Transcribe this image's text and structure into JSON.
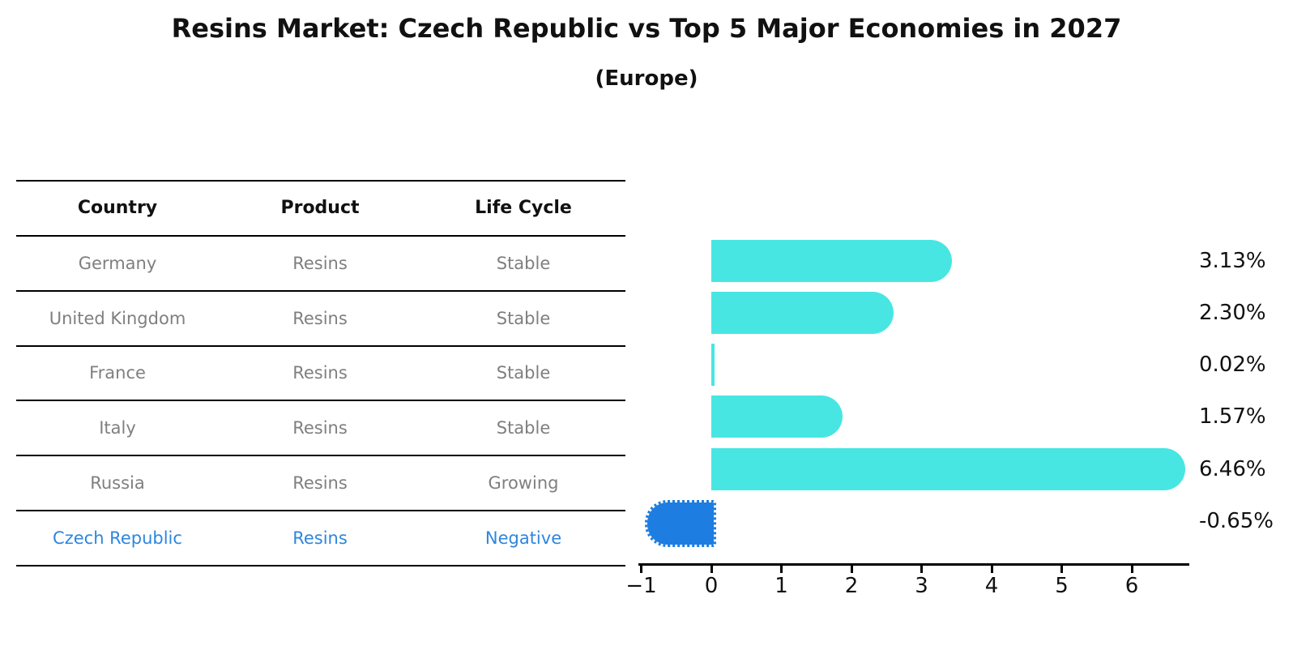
{
  "title": "Resins Market: Czech Republic vs Top 5 Major Economies in 2027",
  "subtitle": "(Europe)",
  "table": {
    "headers": [
      "Country",
      "Product",
      "Life Cycle"
    ],
    "rows": [
      {
        "country": "Germany",
        "product": "Resins",
        "life_cycle": "Stable",
        "highlight": false
      },
      {
        "country": "United Kingdom",
        "product": "Resins",
        "life_cycle": "Stable",
        "highlight": false
      },
      {
        "country": "France",
        "product": "Resins",
        "life_cycle": "Stable",
        "highlight": false
      },
      {
        "country": "Italy",
        "product": "Resins",
        "life_cycle": "Stable",
        "highlight": false
      },
      {
        "country": "Russia",
        "product": "Resins",
        "life_cycle": "Growing",
        "highlight": false
      },
      {
        "country": "Czech Republic",
        "product": "Resins",
        "life_cycle": "Negative",
        "highlight": true
      }
    ]
  },
  "chart_data": {
    "type": "bar",
    "orientation": "horizontal",
    "title": "Resins Market: Czech Republic vs Top 5 Major Economies in 2027",
    "subtitle": "(Europe)",
    "categories": [
      "Germany",
      "United Kingdom",
      "France",
      "Italy",
      "Russia",
      "Czech Republic"
    ],
    "values": [
      3.13,
      2.3,
      0.02,
      1.57,
      6.46,
      -0.65
    ],
    "value_labels": [
      "3.13%",
      "2.30%",
      "0.02%",
      "1.57%",
      "6.46%",
      "-0.65%"
    ],
    "xlabel": "",
    "ylabel": "",
    "xlim": [
      -1.05,
      6.82
    ],
    "x_ticks": [
      -1,
      0,
      1,
      2,
      3,
      4,
      5,
      6
    ],
    "x_tick_labels": [
      "−1",
      "0",
      "1",
      "2",
      "3",
      "4",
      "5",
      "6"
    ],
    "grid": false,
    "legend_position": "none",
    "colors": {
      "bar_positive": "#48E6E2",
      "bar_negative": "#1E7DE0",
      "highlight_text": "#2E86DE",
      "table_text": "#7f7f7f",
      "axis": "#000000"
    }
  }
}
